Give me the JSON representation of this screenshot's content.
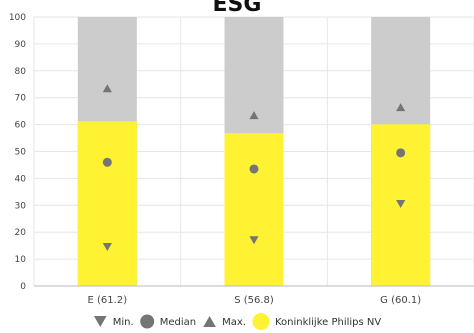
{
  "chart_data": {
    "type": "bar",
    "title": "ESG",
    "xlabel": "",
    "ylabel": "",
    "ylim": [
      0,
      100
    ],
    "yticks": [
      0,
      10,
      20,
      30,
      40,
      50,
      60,
      70,
      80,
      90,
      100
    ],
    "grid": true,
    "categories": [
      "E (61.2)",
      "S (56.8)",
      "G (60.1)"
    ],
    "series": [
      {
        "name": "Koninklijke Philips NV",
        "values": [
          61.2,
          56.8,
          60.1
        ]
      },
      {
        "name": "Min.",
        "values": [
          14.5,
          17,
          30.5
        ]
      },
      {
        "name": "Median",
        "values": [
          46,
          43.5,
          49.5
        ]
      },
      {
        "name": "Max.",
        "values": [
          73.5,
          63.5,
          66.5
        ]
      }
    ],
    "background_max": 100,
    "legend_position": "bottom",
    "colors": {
      "bar": "#fef233",
      "background_bar": "#cccccc",
      "marker": "#757575",
      "grid": "#e6e6e6",
      "axis": "#bbbbbb"
    }
  }
}
